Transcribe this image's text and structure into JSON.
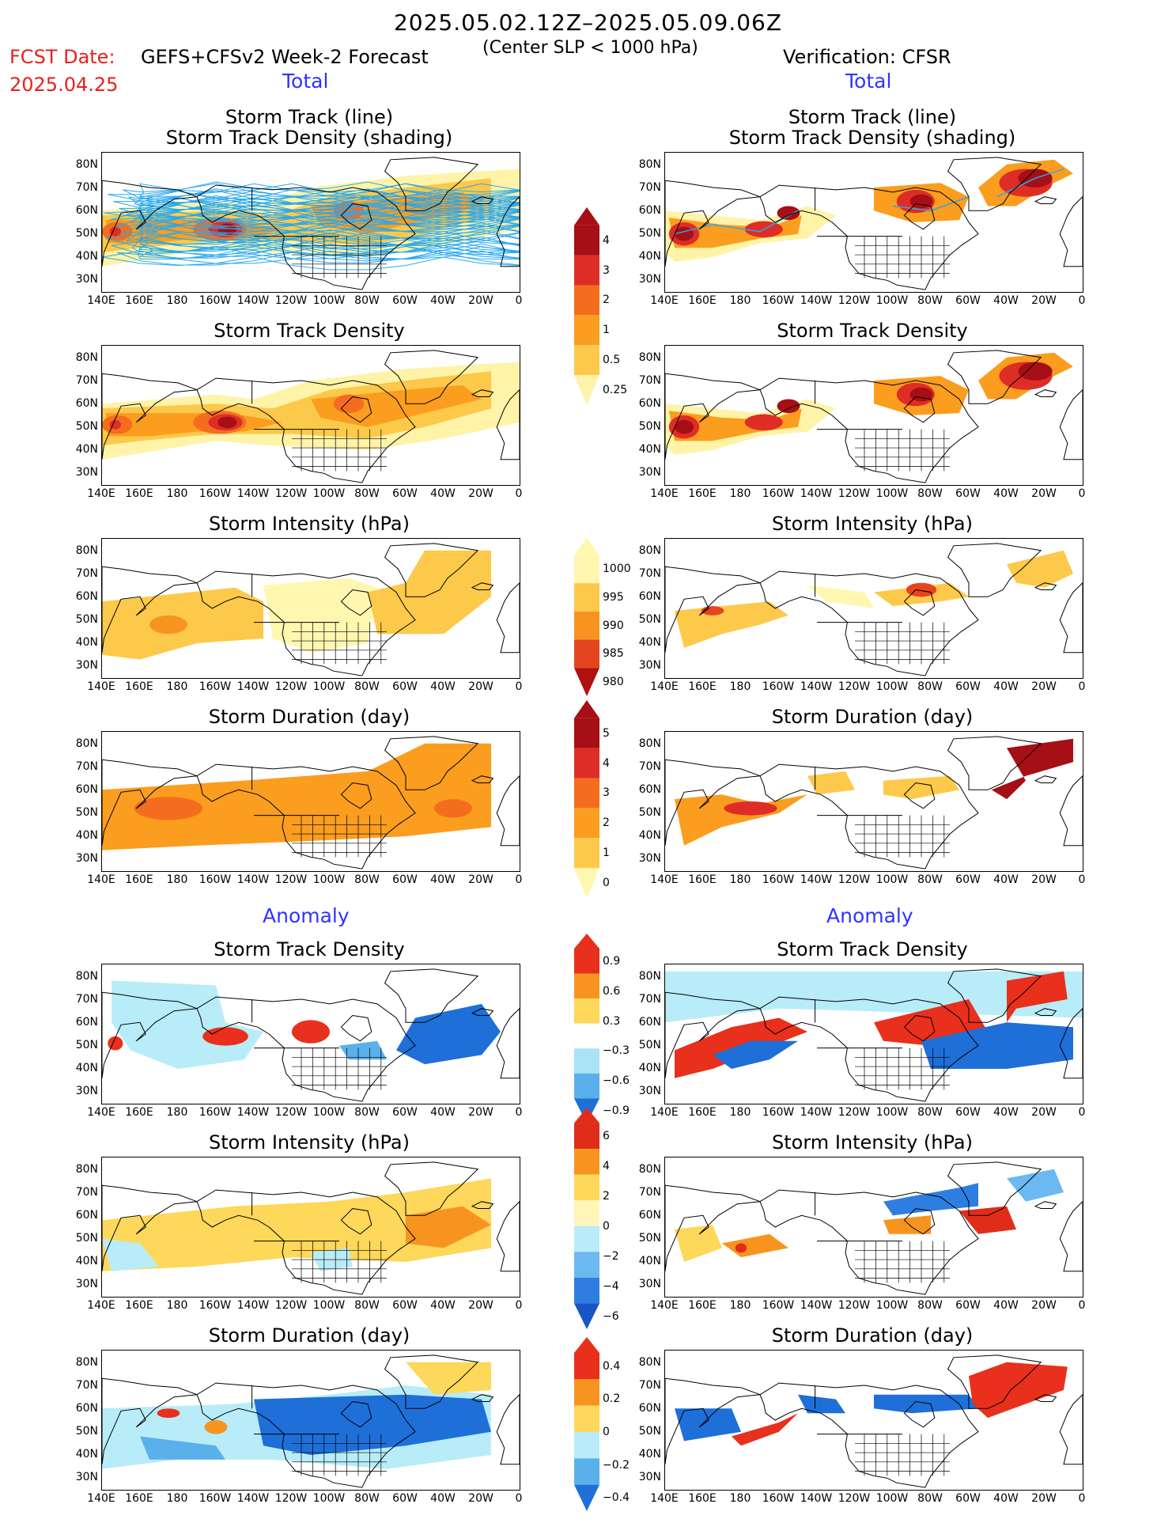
{
  "header": {
    "date_range": "2025.05.02.12Z–2025.05.09.06Z",
    "fcst_label": "FCST Date:",
    "fcst_title": "GEFS+CFSv2 Week-2 Forecast",
    "fcst_subtitle": "(Center SLP < 1000 hPa)",
    "fcst_date": "2025.04.25",
    "verification": "Verification: CFSR"
  },
  "sections": {
    "total": "Total",
    "anomaly": "Anomaly"
  },
  "panel_titles": {
    "track_line": "Storm Track (line)",
    "track_shading": "Storm Track Density (shading)",
    "density": "Storm Track Density",
    "intensity": "Storm Intensity (hPa)",
    "duration": "Storm Duration (day)"
  },
  "axes": {
    "lat_labels": [
      "80N",
      "70N",
      "60N",
      "50N",
      "40N",
      "30N"
    ],
    "lon_labels": [
      "140E",
      "160E",
      "180",
      "160W",
      "140W",
      "120W",
      "100W",
      "80W",
      "60W",
      "40W",
      "20W",
      "0"
    ]
  },
  "colorbars": {
    "density_total": {
      "labels": [
        "4",
        "3",
        "2",
        "1",
        "0.5",
        "0.25"
      ],
      "colors": [
        "#a50f15",
        "#de2d26",
        "#f46d1f",
        "#fb9d1e",
        "#fdc94a",
        "#fff3a8"
      ]
    },
    "intensity_total": {
      "labels": [
        "1000",
        "995",
        "990",
        "985",
        "980"
      ],
      "colors": [
        "#fff7b0",
        "#fdc94a",
        "#f79420",
        "#e5451e",
        "#b01010"
      ]
    },
    "duration_total": {
      "labels": [
        "5",
        "4",
        "3",
        "2",
        "1",
        "0"
      ],
      "colors": [
        "#a50f15",
        "#de2d26",
        "#f46d1f",
        "#fb9d1e",
        "#fdc94a",
        "#fff7b0"
      ]
    },
    "density_anom": {
      "labels": [
        "0.9",
        "0.6",
        "0.3",
        "−0.3",
        "−0.6",
        "−0.9"
      ],
      "colors": [
        "#e8301c",
        "#f79420",
        "#fdd85a",
        "#ffffff",
        "#a8e4f5",
        "#5ab0ea",
        "#1f6fd8"
      ]
    },
    "intensity_anom": {
      "labels": [
        "6",
        "4",
        "2",
        "0",
        "−2",
        "−4",
        "−6"
      ],
      "colors": [
        "#e02d1a",
        "#f79420",
        "#fdd85a",
        "#fff5b8",
        "#b8ecf8",
        "#6cb8f0",
        "#2d7ee0",
        "#1a55c8"
      ]
    },
    "duration_anom": {
      "labels": [
        "0.4",
        "0.2",
        "0",
        "−0.2",
        "−0.4"
      ],
      "colors": [
        "#e8301c",
        "#f79420",
        "#fdd85a",
        "#b8ecf8",
        "#5ab0ea",
        "#1f6fd8"
      ]
    }
  }
}
